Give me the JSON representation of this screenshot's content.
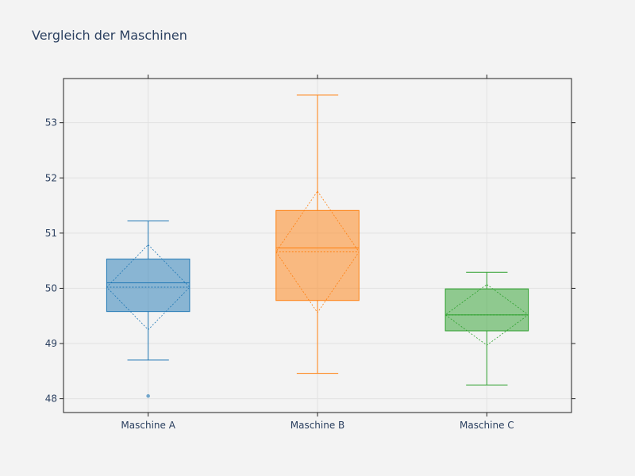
{
  "chart_data": {
    "type": "box",
    "title": "Vergleich der Maschinen",
    "xlabel": "",
    "ylabel": "",
    "ylim": [
      47.75,
      53.8
    ],
    "yticks": [
      48,
      49,
      50,
      51,
      52,
      53
    ],
    "grid": true,
    "boxmean": "sd",
    "categories": [
      "Maschine A",
      "Maschine B",
      "Maschine C"
    ],
    "series": [
      {
        "category": "Maschine A",
        "color": "#1f77b4",
        "lowerfence": 48.7,
        "q1": 49.58,
        "median": 50.1,
        "q3": 50.53,
        "upperfence": 51.22,
        "mean": 50.02,
        "sd": 0.77,
        "outliers": [
          48.05
        ]
      },
      {
        "category": "Maschine B",
        "color": "#ff7f0e",
        "lowerfence": 48.46,
        "q1": 49.78,
        "median": 50.73,
        "q3": 51.41,
        "upperfence": 53.5,
        "mean": 50.66,
        "sd": 1.1,
        "outliers": []
      },
      {
        "category": "Maschine C",
        "color": "#2ca02c",
        "lowerfence": 48.25,
        "q1": 49.23,
        "median": 49.52,
        "q3": 49.99,
        "upperfence": 50.29,
        "mean": 49.52,
        "sd": 0.55,
        "outliers": []
      }
    ]
  }
}
